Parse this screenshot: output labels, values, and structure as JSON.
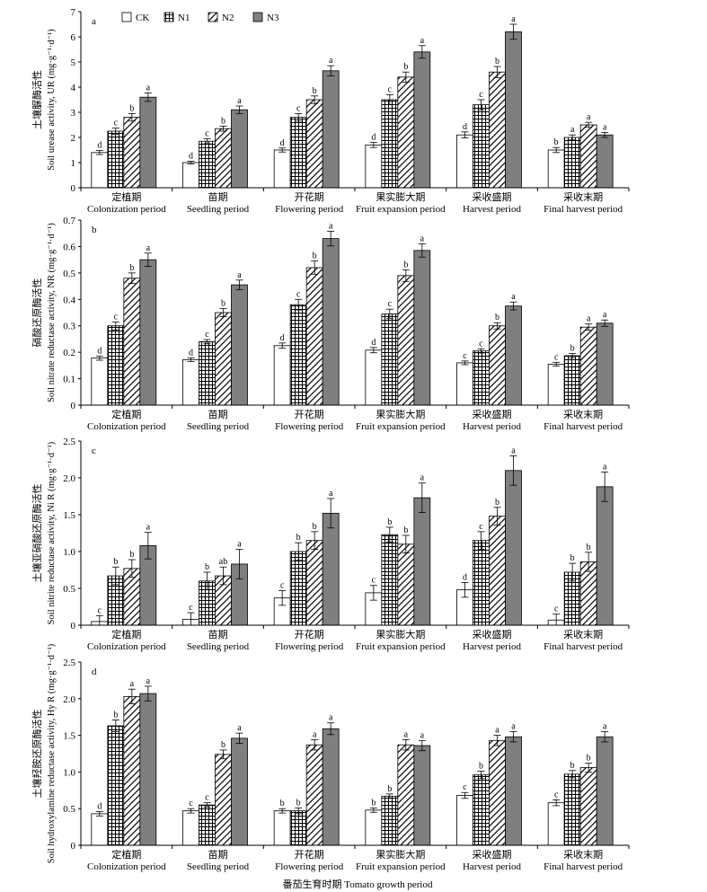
{
  "legend": {
    "placement": "top-left",
    "entries": [
      {
        "name": "CK",
        "pattern": "white"
      },
      {
        "name": "N1",
        "pattern": "grid"
      },
      {
        "name": "N2",
        "pattern": "diagonal"
      },
      {
        "name": "N3",
        "pattern": "gray"
      }
    ]
  },
  "figure_xlabel": "番茄生育时期 Tomato growth period",
  "chart_data": [
    {
      "type": "bar",
      "panel": "a",
      "ylabel_cn": "土壤脲酶活性",
      "ylabel_en": "Soil urease activity, UR (mg·g⁻¹·d⁻¹)",
      "ylim": [
        0,
        7
      ],
      "yticks": [
        "0",
        "1",
        "2",
        "3",
        "4",
        "5",
        "6",
        "7"
      ],
      "categories_cn": [
        "定植期",
        "苗期",
        "开花期",
        "果实膨大期",
        "采收盛期",
        "采收末期"
      ],
      "categories_en": [
        "Colonization period",
        "Seedling period",
        "Flowering period",
        "Fruit expansion period",
        "Harvest period",
        "Final harvest period"
      ],
      "series": [
        {
          "name": "CK",
          "values": [
            1.4,
            1.0,
            1.5,
            1.7,
            2.1,
            1.5
          ],
          "errors": [
            0.08,
            0.05,
            0.08,
            0.1,
            0.12,
            0.1
          ],
          "letters": [
            "d",
            "d",
            "d",
            "d",
            "d",
            "b"
          ]
        },
        {
          "name": "N1",
          "values": [
            2.25,
            1.85,
            2.8,
            3.5,
            3.3,
            2.0
          ],
          "errors": [
            0.12,
            0.1,
            0.15,
            0.2,
            0.2,
            0.1
          ],
          "letters": [
            "c",
            "c",
            "c",
            "c",
            "c",
            "a"
          ]
        },
        {
          "name": "N2",
          "values": [
            2.8,
            2.35,
            3.5,
            4.4,
            4.6,
            2.5
          ],
          "errors": [
            0.15,
            0.1,
            0.15,
            0.2,
            0.22,
            0.1
          ],
          "letters": [
            "b",
            "b",
            "b",
            "b",
            "b",
            "a"
          ]
        },
        {
          "name": "N3",
          "values": [
            3.6,
            3.1,
            4.65,
            5.4,
            6.2,
            2.1
          ],
          "errors": [
            0.17,
            0.15,
            0.2,
            0.25,
            0.3,
            0.1
          ],
          "letters": [
            "a",
            "a",
            "a",
            "a",
            "a",
            "a"
          ]
        }
      ]
    },
    {
      "type": "bar",
      "panel": "b",
      "ylabel_cn": "硝酸还原酶活性",
      "ylabel_en": "Soil nitrate reductase activity, NR (mg·g⁻¹·d⁻¹)",
      "ylim": [
        0,
        0.7
      ],
      "yticks": [
        "0",
        "0.1",
        "0.2",
        "0.3",
        "0.4",
        "0.5",
        "0.6",
        "0.7"
      ],
      "categories_cn": [
        "定植期",
        "苗期",
        "开花期",
        "果实膨大期",
        "采收盛期",
        "采收末期"
      ],
      "categories_en": [
        "Colonization period",
        "Seedling period",
        "Flowering period",
        "Fruit expansion period",
        "Harvest period",
        "Final harvest period"
      ],
      "series": [
        {
          "name": "CK",
          "values": [
            0.178,
            0.172,
            0.225,
            0.208,
            0.16,
            0.155
          ],
          "errors": [
            0.008,
            0.007,
            0.01,
            0.01,
            0.007,
            0.007
          ],
          "letters": [
            "d",
            "d",
            "d",
            "d",
            "c",
            "c"
          ]
        },
        {
          "name": "N1",
          "values": [
            0.3,
            0.24,
            0.38,
            0.345,
            0.205,
            0.187
          ],
          "errors": [
            0.015,
            0.008,
            0.02,
            0.018,
            0.008,
            0.008
          ],
          "letters": [
            "c",
            "c",
            "c",
            "c",
            "c",
            "b"
          ]
        },
        {
          "name": "N2",
          "values": [
            0.48,
            0.35,
            0.52,
            0.49,
            0.3,
            0.295
          ],
          "errors": [
            0.02,
            0.015,
            0.025,
            0.022,
            0.012,
            0.012
          ],
          "letters": [
            "b",
            "b",
            "b",
            "b",
            "b",
            "a"
          ]
        },
        {
          "name": "N3",
          "values": [
            0.55,
            0.455,
            0.63,
            0.585,
            0.375,
            0.31
          ],
          "errors": [
            0.025,
            0.018,
            0.028,
            0.025,
            0.015,
            0.012
          ],
          "letters": [
            "a",
            "a",
            "a",
            "a",
            "a",
            "a"
          ]
        }
      ]
    },
    {
      "type": "bar",
      "panel": "c",
      "ylabel_cn": "土壤亚硝酸还原酶活性",
      "ylabel_en": "Soil nitrite reductase activity, Ni R (mg·g⁻¹·d⁻¹)",
      "ylim": [
        0,
        2.5
      ],
      "yticks": [
        "0",
        "0.5",
        "1.0",
        "1.5",
        "2.0",
        "2.5"
      ],
      "categories_cn": [
        "定植期",
        "苗期",
        "开花期",
        "果实膨大期",
        "采收盛期",
        "采收末期"
      ],
      "categories_en": [
        "Colonization period",
        "Seedling period",
        "Flowering period",
        "Fruit expansion period",
        "Harvest period",
        "Final harvest period"
      ],
      "series": [
        {
          "name": "CK",
          "values": [
            0.05,
            0.08,
            0.37,
            0.44,
            0.48,
            0.07
          ],
          "errors": [
            0.08,
            0.09,
            0.1,
            0.1,
            0.1,
            0.08
          ],
          "letters": [
            "c",
            "c",
            "c",
            "c",
            "d",
            "c"
          ]
        },
        {
          "name": "N1",
          "values": [
            0.67,
            0.6,
            1.0,
            1.23,
            1.15,
            0.72
          ],
          "errors": [
            0.12,
            0.12,
            0.12,
            0.1,
            0.12,
            0.12
          ],
          "letters": [
            "b",
            "b",
            "b",
            "b",
            "c",
            "b"
          ]
        },
        {
          "name": "N2",
          "values": [
            0.77,
            0.67,
            1.15,
            1.1,
            1.48,
            0.86
          ],
          "errors": [
            0.12,
            0.12,
            0.12,
            0.12,
            0.12,
            0.13
          ],
          "letters": [
            "b",
            "ab",
            "b",
            "b",
            "b",
            "b"
          ]
        },
        {
          "name": "N3",
          "values": [
            1.08,
            0.83,
            1.52,
            1.73,
            2.1,
            1.88
          ],
          "errors": [
            0.18,
            0.2,
            0.2,
            0.2,
            0.2,
            0.2
          ],
          "letters": [
            "a",
            "a",
            "a",
            "a",
            "a",
            "a"
          ]
        }
      ]
    },
    {
      "type": "bar",
      "panel": "d",
      "ylabel_cn": "土壤羟胺还原酶活性",
      "ylabel_en": "Soil hydroxylamine reductase activity, Hy R (mg·g⁻¹·d⁻¹)",
      "ylim": [
        0,
        2.5
      ],
      "yticks": [
        "0",
        "0.5",
        "1.0",
        "1.5",
        "2.0",
        "2.5"
      ],
      "categories_cn": [
        "定植期",
        "苗期",
        "开花期",
        "果实膨大期",
        "采收盛期",
        "采收末期"
      ],
      "categories_en": [
        "Colonization period",
        "Seedling period",
        "Flowering period",
        "Fruit expansion period",
        "Harvest period",
        "Final harvest period"
      ],
      "series": [
        {
          "name": "CK",
          "values": [
            0.43,
            0.47,
            0.47,
            0.48,
            0.68,
            0.58
          ],
          "errors": [
            0.03,
            0.03,
            0.03,
            0.03,
            0.04,
            0.04
          ],
          "letters": [
            "d",
            "c",
            "b",
            "b",
            "c",
            "c"
          ]
        },
        {
          "name": "N1",
          "values": [
            1.63,
            0.55,
            0.47,
            0.67,
            0.96,
            0.97
          ],
          "errors": [
            0.08,
            0.03,
            0.04,
            0.03,
            0.05,
            0.05
          ],
          "letters": [
            "b",
            "c",
            "b",
            "b",
            "b",
            "b"
          ]
        },
        {
          "name": "N2",
          "values": [
            2.03,
            1.24,
            1.37,
            1.37,
            1.43,
            1.06
          ],
          "errors": [
            0.1,
            0.06,
            0.07,
            0.07,
            0.07,
            0.06
          ],
          "letters": [
            "a",
            "b",
            "a",
            "a",
            "a",
            "b"
          ]
        },
        {
          "name": "N3",
          "values": [
            2.07,
            1.46,
            1.59,
            1.36,
            1.48,
            1.48
          ],
          "errors": [
            0.1,
            0.07,
            0.08,
            0.07,
            0.07,
            0.07
          ],
          "letters": [
            "a",
            "a",
            "a",
            "a",
            "a",
            "a"
          ]
        }
      ]
    }
  ]
}
